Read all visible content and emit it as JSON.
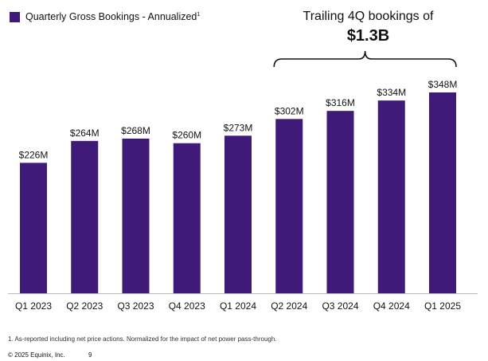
{
  "legend": {
    "label": "Quarterly Gross Bookings - Annualized",
    "superscript": "1",
    "color": "#3f1a78"
  },
  "callout": {
    "line1": "Trailing 4Q bookings of",
    "line2": "$1.3B"
  },
  "footnote": "1. As-reported including net price actions. Normalized for the impact of net power pass-through.",
  "footer": {
    "copyright": "© 2025 Equinix, Inc.",
    "page_number": "9"
  },
  "chart_data": {
    "type": "bar",
    "title": "Quarterly Gross Bookings - Annualized",
    "categories": [
      "Q1 2023",
      "Q2 2023",
      "Q3 2023",
      "Q4 2023",
      "Q1 2024",
      "Q2 2024",
      "Q3 2024",
      "Q4 2024",
      "Q1 2025"
    ],
    "values": [
      226,
      264,
      268,
      260,
      273,
      302,
      316,
      334,
      348
    ],
    "data_labels": [
      "$226M",
      "$264M",
      "$268M",
      "$260M",
      "$273M",
      "$302M",
      "$316M",
      "$334M",
      "$348M"
    ],
    "unit": "$M",
    "xlabel": "",
    "ylabel": "",
    "ylim": [
      0,
      348
    ],
    "grid": false,
    "bar_color": "#3f1a78",
    "bracket_span": [
      "Q2 2024",
      "Q1 2025"
    ]
  }
}
